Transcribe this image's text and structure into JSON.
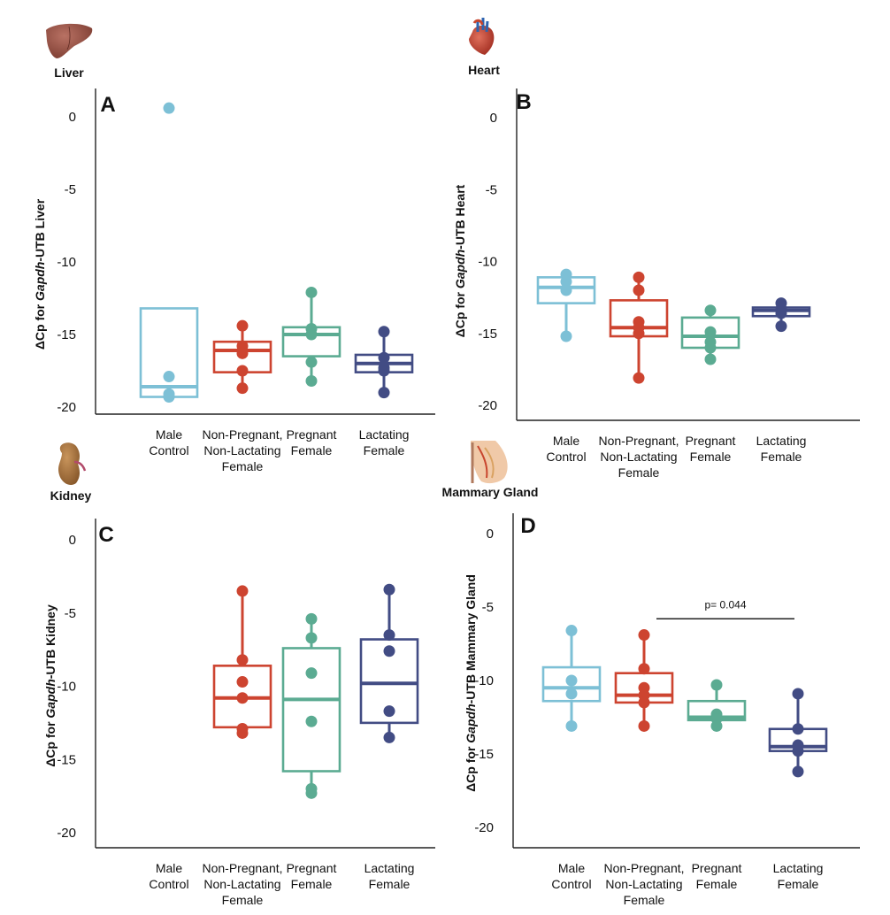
{
  "colors": {
    "male": "#7dc0d6",
    "nonpreg": "#cd4430",
    "pregnant": "#5bab92",
    "lactating": "#424c84",
    "axis": "#222222",
    "text": "#111111"
  },
  "chart_data": [
    {
      "panel": "A",
      "type": "box",
      "tissue": "Liver",
      "tissue_icon": "liver-icon",
      "ylabel_prefix": "ΔCp for ",
      "ylabel_gene": "Gapdh",
      "ylabel_suffix": "-UTB Liver",
      "ylim": [
        -21,
        1.5
      ],
      "yticks": [
        0,
        -5,
        -10,
        -15,
        -20
      ],
      "ytick_labels": [
        "0",
        "-5",
        "-10",
        "-15",
        "-20"
      ],
      "categories": [
        {
          "lines": [
            "Male",
            "Control"
          ]
        },
        {
          "lines": [
            "Non-Pregnant,",
            "Non-Lactating",
            "Female"
          ]
        },
        {
          "lines": [
            "Pregnant",
            "Female"
          ]
        },
        {
          "lines": [
            "Lactating",
            "Female"
          ]
        }
      ],
      "series": [
        {
          "color": "male",
          "box": [
            -13.2,
            -18.6,
            -19.3
          ],
          "whisker": [],
          "points": [
            0.6,
            -17.9,
            -19.1,
            -19.3
          ]
        },
        {
          "color": "nonpreg",
          "box": [
            -15.5,
            -16.1,
            -17.6
          ],
          "whisker": [
            -14.4,
            -18.7
          ],
          "points": [
            -14.4,
            -15.8,
            -16.3,
            -17.5,
            -18.7
          ]
        },
        {
          "color": "pregnant",
          "box": [
            -14.5,
            -15.0,
            -16.5
          ],
          "whisker": [
            -12.1,
            -18.2
          ],
          "points": [
            -12.1,
            -14.6,
            -15.0,
            -16.9,
            -18.2
          ]
        },
        {
          "color": "lactating",
          "box": [
            -16.4,
            -17.0,
            -17.6
          ],
          "whisker": [
            -14.8,
            -19.0
          ],
          "points": [
            -14.8,
            -16.6,
            -17.3,
            -17.5,
            -19.0
          ]
        }
      ]
    },
    {
      "panel": "B",
      "type": "box",
      "tissue": "Heart",
      "tissue_icon": "heart-icon",
      "ylabel_prefix": "ΔCp for ",
      "ylabel_gene": "Gapdh",
      "ylabel_suffix": "-UTB Heart",
      "ylim": [
        -21,
        1.5
      ],
      "yticks": [
        0,
        -5,
        -10,
        -15,
        -20
      ],
      "ytick_labels": [
        "0",
        "-5",
        "-10",
        "-15",
        "-20"
      ],
      "categories": [
        {
          "lines": [
            "Male",
            "Control"
          ]
        },
        {
          "lines": [
            "Non-Pregnant,",
            "Non-Lactating",
            "Female"
          ]
        },
        {
          "lines": [
            "Pregnant",
            "Female"
          ]
        },
        {
          "lines": [
            "Lactating",
            "Female"
          ]
        }
      ],
      "series": [
        {
          "color": "male",
          "box": [
            -11.1,
            -11.8,
            -12.9
          ],
          "whisker": [
            -10.9,
            -15.2
          ],
          "points": [
            -10.9,
            -11.4,
            -12.0,
            -15.2
          ]
        },
        {
          "color": "nonpreg",
          "box": [
            -12.7,
            -14.6,
            -15.2
          ],
          "whisker": [
            -11.1,
            -18.1
          ],
          "points": [
            -11.1,
            -12.0,
            -14.2,
            -14.6,
            -15.0,
            -18.1
          ]
        },
        {
          "color": "pregnant",
          "box": [
            -13.9,
            -15.2,
            -16.0
          ],
          "whisker": [
            -13.4,
            -16.8
          ],
          "points": [
            -13.4,
            -14.9,
            -15.6,
            -16.0,
            -16.8
          ]
        },
        {
          "color": "lactating",
          "box": [
            -13.2,
            -13.4,
            -13.8
          ],
          "whisker": [
            -12.9,
            -14.5
          ],
          "points": [
            -12.9,
            -13.3,
            -13.6,
            -14.5
          ]
        }
      ]
    },
    {
      "panel": "C",
      "type": "box",
      "tissue": "Kidney",
      "tissue_icon": "kidney-icon",
      "ylabel_prefix": "ΔCp for ",
      "ylabel_gene": "Gapdh",
      "ylabel_suffix": "-UTB Kidney",
      "ylim": [
        -21,
        1.5
      ],
      "yticks": [
        0,
        -5,
        -10,
        -15,
        -20
      ],
      "ytick_labels": [
        "0",
        "-5",
        "-10",
        "-15",
        "-20"
      ],
      "categories": [
        {
          "lines": [
            "Male",
            "Control"
          ]
        },
        {
          "lines": [
            "Non-Pregnant,",
            "Non-Lactating",
            "Female"
          ]
        },
        {
          "lines": [
            "Pregnant",
            "Female"
          ]
        },
        {
          "lines": [
            "Lactating",
            "Female"
          ]
        }
      ],
      "series": [
        {
          "color": "male",
          "box": [],
          "whisker": [],
          "points": []
        },
        {
          "color": "nonpreg",
          "box": [
            -8.6,
            -10.8,
            -12.8
          ],
          "whisker": [
            -3.5,
            -13.2
          ],
          "points": [
            -3.5,
            -8.2,
            -9.7,
            -10.8,
            -12.9,
            -13.2
          ]
        },
        {
          "color": "pregnant",
          "box": [
            -7.4,
            -10.9,
            -15.8
          ],
          "whisker": [
            -5.4,
            -17.3
          ],
          "points": [
            -5.4,
            -6.7,
            -9.1,
            -12.4,
            -17.0,
            -17.3
          ]
        },
        {
          "color": "lactating",
          "box": [
            -6.8,
            -9.8,
            -12.5
          ],
          "whisker": [
            -3.4,
            -13.5
          ],
          "points": [
            -3.4,
            -6.5,
            -7.6,
            -11.7,
            -13.5
          ]
        }
      ]
    },
    {
      "panel": "D",
      "type": "box",
      "tissue": "Mammary Gland",
      "tissue_icon": "mammary-gland-icon",
      "ylabel_prefix": "ΔCp for ",
      "ylabel_gene": "Gapdh",
      "ylabel_suffix": "-UTB Mammary Gland",
      "ylim": [
        -21,
        1.5
      ],
      "yticks": [
        0,
        -5,
        -10,
        -15,
        -20
      ],
      "ytick_labels": [
        "0",
        "-5",
        "-10",
        "-15",
        "-20"
      ],
      "categories": [
        {
          "lines": [
            "Male",
            "Control"
          ]
        },
        {
          "lines": [
            "Non-Pregnant,",
            "Non-Lactating",
            "Female"
          ]
        },
        {
          "lines": [
            "Pregnant",
            "Female"
          ]
        },
        {
          "lines": [
            "Lactating",
            "Female"
          ]
        }
      ],
      "series": [
        {
          "color": "male",
          "box": [
            -9.1,
            -10.5,
            -11.4
          ],
          "whisker": [
            -6.6,
            -13.1
          ],
          "points": [
            -6.6,
            -10.0,
            -10.9,
            -13.1
          ]
        },
        {
          "color": "nonpreg",
          "box": [
            -9.5,
            -11.0,
            -11.5
          ],
          "whisker": [
            -6.9,
            -13.1
          ],
          "points": [
            -6.9,
            -9.2,
            -10.5,
            -11.0,
            -11.5,
            -13.1
          ]
        },
        {
          "color": "pregnant",
          "box": [
            -11.4,
            -12.5,
            -12.7
          ],
          "whisker": [
            -10.3,
            -13.1
          ],
          "points": [
            -10.3,
            -12.3,
            -12.6,
            -13.1
          ]
        },
        {
          "color": "lactating",
          "box": [
            -13.3,
            -14.5,
            -14.8
          ],
          "whisker": [
            -10.9,
            -16.2
          ],
          "points": [
            -10.9,
            -13.3,
            -14.4,
            -14.8,
            -16.2
          ]
        }
      ],
      "annotation": {
        "text": "p= 0.044",
        "from": 1,
        "to": 3,
        "y": -5.8
      }
    }
  ]
}
